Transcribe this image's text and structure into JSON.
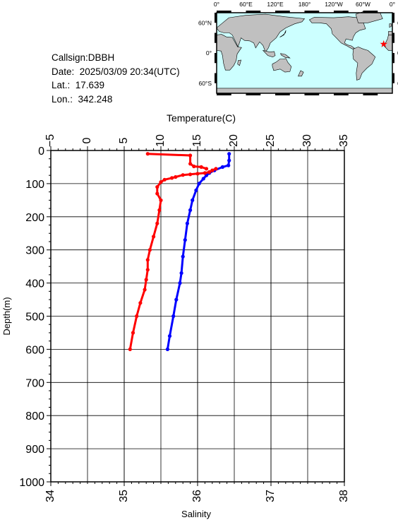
{
  "info": {
    "callsign": "Callsign:DBBH",
    "date": "Date:  2025/03/09 20:34(UTC)",
    "lat": "Lat.:  17.639",
    "lon": "Lon.:  342.248"
  },
  "map": {
    "lon_labels": [
      "0°",
      "60°E",
      "120°E",
      "180°",
      "120°W",
      "60°W",
      "0°"
    ],
    "lat_labels": [
      "60°N",
      "0°",
      "60°S"
    ],
    "lat_labels_right": [
      "60°N",
      "0°",
      "60°S"
    ],
    "ocean_color": "#ccffff",
    "land_color": "#c0c0c0",
    "marker_color": "#ff0000",
    "station_lon": 342.248,
    "station_lat": 17.639
  },
  "chart_data": {
    "type": "line",
    "y_axis": {
      "label": "Depth(m)",
      "range": [
        0,
        1000
      ],
      "ticks": [
        "0",
        "100",
        "200",
        "300",
        "400",
        "500",
        "600",
        "700",
        "800",
        "900",
        "1000"
      ],
      "inverted": true
    },
    "x_top": {
      "label": "Temperature(C)",
      "range": [
        -5,
        35
      ],
      "ticks": [
        "-5",
        "0",
        "5",
        "10",
        "15",
        "20",
        "25",
        "30",
        "35"
      ]
    },
    "x_bottom": {
      "label": "Salinity",
      "range": [
        34,
        38
      ],
      "ticks": [
        "34",
        "35",
        "36",
        "37",
        "38"
      ]
    },
    "grid": true,
    "series": [
      {
        "axis": "temperature",
        "color": "#0000ff",
        "points": [
          [
            19.3,
            10
          ],
          [
            19.3,
            30
          ],
          [
            19.2,
            45
          ],
          [
            18.4,
            50
          ],
          [
            17.3,
            60
          ],
          [
            16.6,
            68
          ],
          [
            16.2,
            75
          ],
          [
            15.8,
            85
          ],
          [
            15.2,
            100
          ],
          [
            14.8,
            120
          ],
          [
            14.3,
            150
          ],
          [
            14.0,
            180
          ],
          [
            13.6,
            220
          ],
          [
            13.3,
            270
          ],
          [
            13.0,
            320
          ],
          [
            12.8,
            370
          ],
          [
            12.6,
            400
          ],
          [
            12.1,
            450
          ],
          [
            11.7,
            500
          ],
          [
            11.2,
            560
          ],
          [
            10.9,
            600
          ]
        ]
      },
      {
        "axis": "salinity",
        "color": "#ff0000",
        "points": [
          [
            36.25,
            55
          ],
          [
            36.2,
            60
          ],
          [
            36.16,
            65
          ],
          [
            36.1,
            68
          ],
          [
            36.0,
            70
          ],
          [
            35.9,
            72
          ],
          [
            35.8,
            74
          ],
          [
            35.7,
            80
          ],
          [
            35.65,
            83
          ],
          [
            35.55,
            88
          ],
          [
            35.5,
            95
          ],
          [
            35.45,
            110
          ],
          [
            35.45,
            130
          ],
          [
            35.5,
            150
          ],
          [
            35.48,
            180
          ],
          [
            35.45,
            220
          ],
          [
            35.4,
            260
          ],
          [
            35.35,
            300
          ],
          [
            35.32,
            330
          ],
          [
            35.32,
            360
          ],
          [
            35.3,
            390
          ],
          [
            35.28,
            420
          ],
          [
            35.22,
            460
          ],
          [
            35.17,
            500
          ],
          [
            35.12,
            550
          ],
          [
            35.08,
            600
          ]
        ]
      },
      {
        "axis": "salinity",
        "color": "#ff0000",
        "points": [
          [
            35.32,
            10
          ],
          [
            35.9,
            15
          ],
          [
            35.9,
            40
          ],
          [
            35.95,
            48
          ],
          [
            36.05,
            50
          ],
          [
            36.12,
            55
          ]
        ]
      }
    ]
  }
}
